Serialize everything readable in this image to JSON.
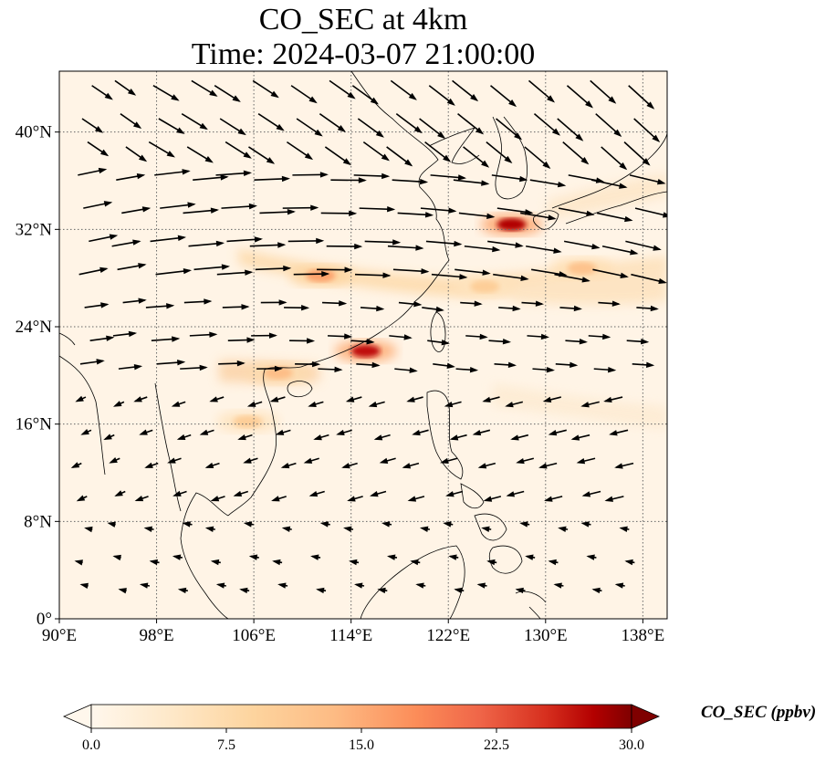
{
  "title": "CO_SEC at 4km",
  "subtitle": "Time: 2024-03-07 21:00:00",
  "map": {
    "lon_range": [
      90,
      140
    ],
    "lat_range": [
      0,
      45
    ],
    "lon_ticks": [
      "90°E",
      "98°E",
      "106°E",
      "114°E",
      "122°E",
      "130°E",
      "138°E"
    ],
    "lat_ticks": [
      "0°",
      "8°N",
      "16°N",
      "24°N",
      "32°N",
      "40°N"
    ],
    "gridlines": true,
    "background_color": "#fff4e6"
  },
  "colorbar": {
    "label": "CO_SEC (ppbv)",
    "range": [
      0,
      30
    ],
    "ticks": [
      "0.0",
      "7.5",
      "15.0",
      "22.5",
      "30.0"
    ],
    "colormap": "OrRd",
    "extend": "both"
  },
  "plumes": [
    {
      "lon": 127.2,
      "lat": 32.4,
      "value": 28
    },
    {
      "lon": 115.2,
      "lat": 22.0,
      "value": 27
    },
    {
      "lon": 111.5,
      "lat": 28.2,
      "value": 16
    },
    {
      "lon": 108.0,
      "lat": 20.2,
      "value": 13
    },
    {
      "lon": 105.5,
      "lat": 16.2,
      "value": 10
    },
    {
      "lon": 133.0,
      "lat": 28.8,
      "value": 12
    },
    {
      "lon": 125.0,
      "lat": 27.3,
      "value": 10
    }
  ]
}
